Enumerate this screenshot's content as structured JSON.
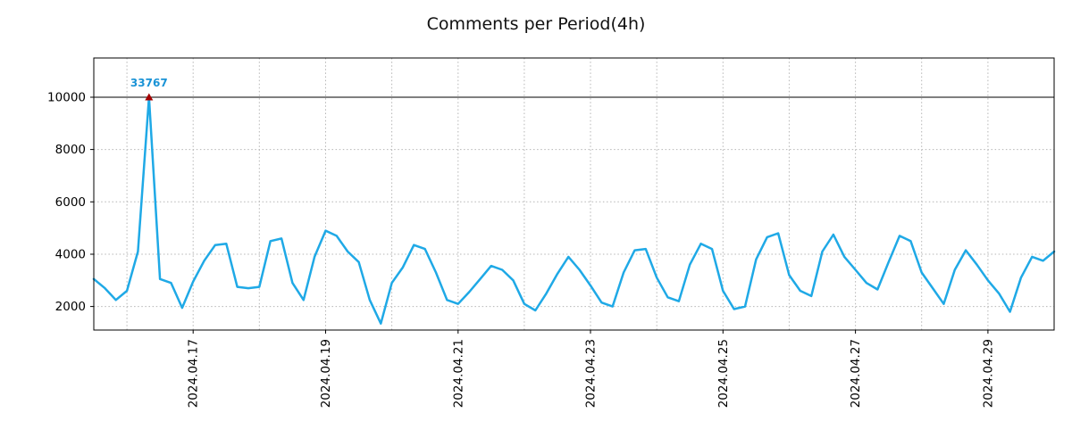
{
  "chart_data": {
    "type": "line",
    "title": "Comments per Period(4h)",
    "xlabel": "",
    "ylabel": "",
    "line_color": "#1fa9e6",
    "line_width": 2.5,
    "ylim": [
      1100,
      11500
    ],
    "y_ticks": [
      2000,
      4000,
      6000,
      8000,
      10000
    ],
    "clip_max": 10000,
    "grid": true,
    "x_ticks": [
      {
        "index": 9,
        "label": "2024.04.17"
      },
      {
        "index": 21,
        "label": "2024.04.19"
      },
      {
        "index": 33,
        "label": "2024.04.21"
      },
      {
        "index": 45,
        "label": "2024.04.23"
      },
      {
        "index": 57,
        "label": "2024.04.25"
      },
      {
        "index": 69,
        "label": "2024.04.27"
      },
      {
        "index": 81,
        "label": "2024.04.29"
      }
    ],
    "x_gridline_indices": [
      3,
      9,
      15,
      21,
      27,
      33,
      39,
      45,
      51,
      57,
      63,
      69,
      75,
      81,
      87
    ],
    "annotation": {
      "index": 5,
      "value": 33767,
      "text": "33767",
      "text_color": "#1a93d6",
      "marker": "triangle-up",
      "marker_color": "#a40000"
    },
    "values": [
      3050,
      2700,
      2250,
      2600,
      4100,
      33767,
      3050,
      2900,
      1950,
      2950,
      3750,
      4350,
      4400,
      2750,
      2700,
      2750,
      4500,
      4600,
      2900,
      2250,
      3900,
      4900,
      4700,
      4100,
      3700,
      2250,
      1350,
      2900,
      3500,
      4350,
      4200,
      3300,
      2250,
      2100,
      2550,
      3050,
      3550,
      3400,
      3000,
      2100,
      1850,
      2500,
      3250,
      3900,
      3400,
      2800,
      2150,
      2000,
      3300,
      4150,
      4200,
      3100,
      2350,
      2200,
      3600,
      4400,
      4200,
      2600,
      1900,
      2000,
      3800,
      4650,
      4800,
      3200,
      2600,
      2400,
      4100,
      4750,
      3900,
      3400,
      2900,
      2650,
      3700,
      4700,
      4500,
      3300,
      2700,
      2100,
      3400,
      4150,
      3600,
      3000,
      2500,
      1800,
      3100,
      3900,
      3750,
      4100
    ]
  }
}
